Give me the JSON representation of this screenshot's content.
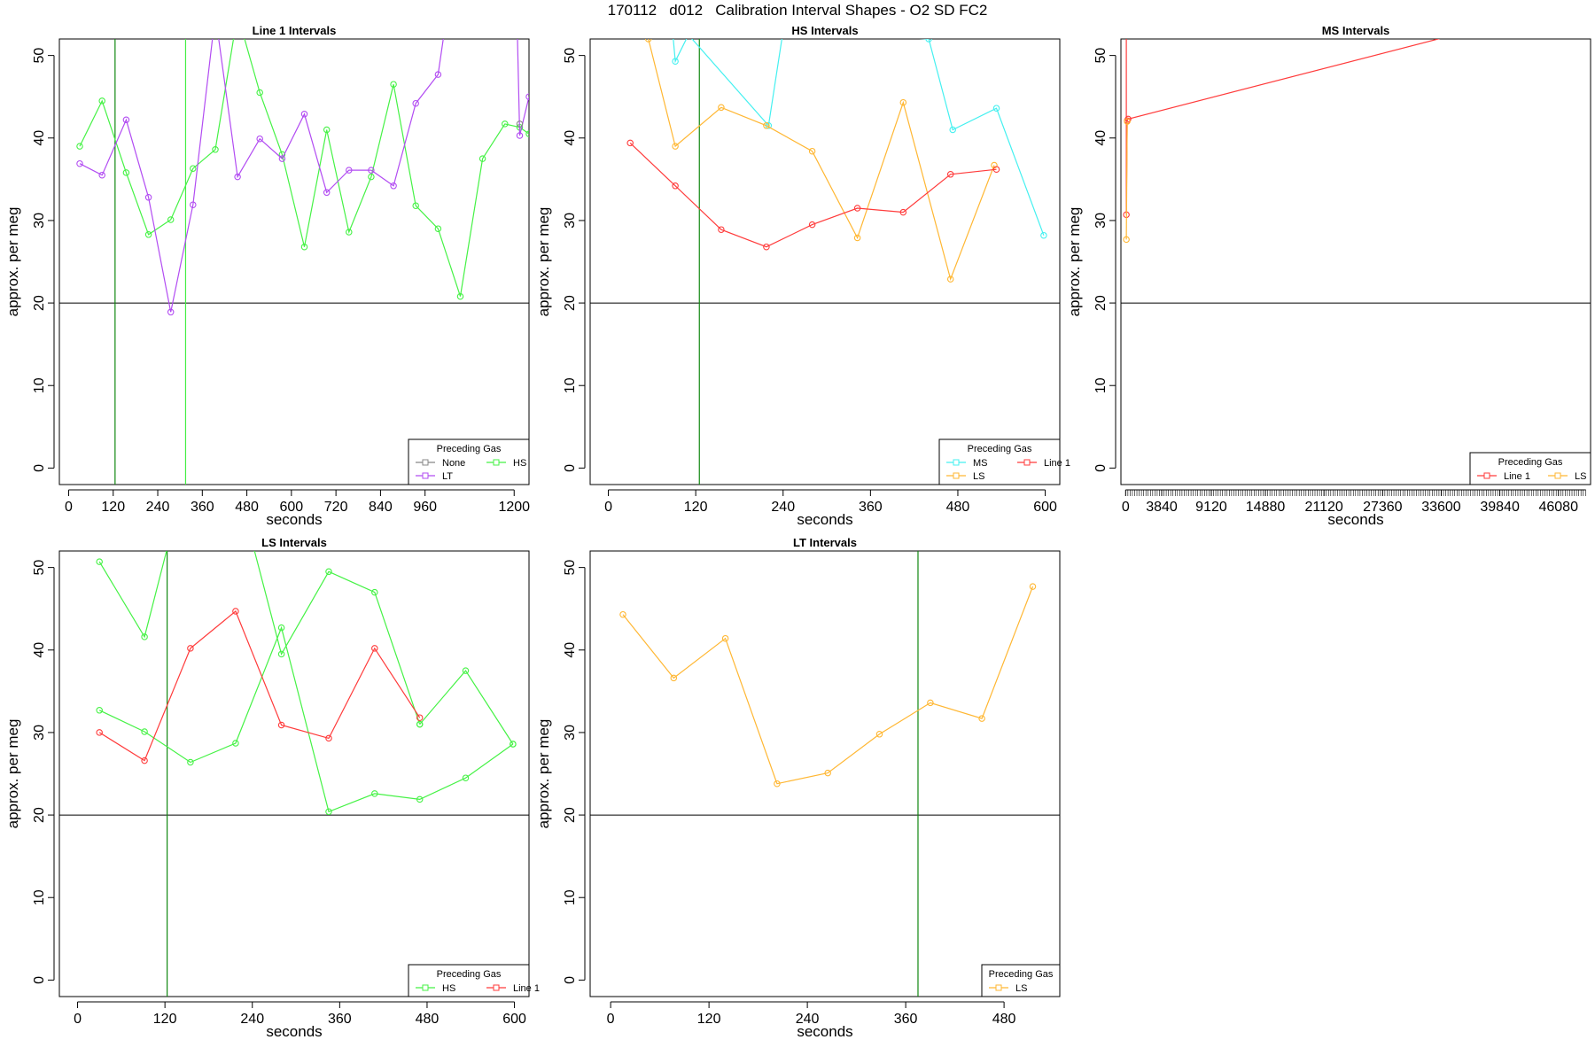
{
  "title": "170112   d012   Calibration Interval Shapes - O2 SD FC2",
  "colors": {
    "Line 1": "#ff3b3b",
    "LT": "#b24cf2",
    "HS": "#45f245",
    "MS": "#44f0f0",
    "LS": "#ffb733",
    "None": "#888888",
    "axis": "#000000",
    "refline": "#000000",
    "marker_dark_green": "#118811",
    "marker_light_green": "#44ee44"
  },
  "chart_data": [
    {
      "type": "line",
      "title": "Line 1 Intervals",
      "xlabel": "seconds",
      "ylabel": "approx. per meg",
      "xlim": [
        -25,
        1240
      ],
      "ylim": [
        -2,
        52
      ],
      "xticks": [
        0,
        120,
        240,
        360,
        480,
        600,
        720,
        840,
        960,
        1200
      ],
      "yticks": [
        0,
        10,
        20,
        30,
        40,
        50
      ],
      "hline": 20,
      "vlines": [
        {
          "x": 125,
          "color": "marker_dark_green"
        },
        {
          "x": 315,
          "color": "marker_light_green"
        }
      ],
      "legend": {
        "title": "Preceding Gas",
        "position": "bottom-right",
        "entries": [
          "None",
          "HS",
          "LT"
        ],
        "cols": 2
      },
      "series": [
        {
          "name": "HS",
          "x": [
            30,
            90,
            155,
            215,
            275,
            335,
            395,
            455,
            515,
            575,
            635,
            695,
            755,
            815,
            875,
            935,
            995,
            1055,
            1115,
            1175,
            1215,
            1240
          ],
          "y": [
            39.0,
            44.5,
            35.8,
            28.3,
            30.1,
            36.3,
            38.6,
            55.0,
            45.5,
            38.0,
            26.8,
            41.0,
            28.6,
            35.3,
            46.5,
            31.8,
            29.0,
            20.8,
            37.5,
            41.7,
            41.3,
            40.5
          ]
        },
        {
          "name": "LT",
          "x": [
            30,
            90,
            155,
            215,
            275,
            335,
            395,
            455,
            515,
            575,
            635,
            695,
            755,
            815,
            875,
            935,
            995,
            1035,
            1205,
            1215,
            1240
          ],
          "y": [
            36.9,
            35.5,
            42.2,
            32.8,
            18.9,
            31.9,
            55.0,
            35.3,
            39.9,
            37.5,
            42.9,
            33.4,
            36.1,
            36.1,
            34.2,
            44.2,
            47.7,
            60.0,
            60.0,
            40.3,
            45.0
          ]
        },
        {
          "name": "None",
          "x": [
            1215
          ],
          "y": [
            41.7
          ]
        }
      ]
    },
    {
      "type": "line",
      "title": "HS Intervals",
      "xlabel": "seconds",
      "ylabel": "approx. per meg",
      "xlim": [
        -25,
        620
      ],
      "ylim": [
        -2,
        52
      ],
      "xticks": [
        0,
        120,
        240,
        360,
        480,
        600
      ],
      "yticks": [
        0,
        10,
        20,
        30,
        40,
        50
      ],
      "hline": 20,
      "vlines": [
        {
          "x": 125,
          "color": "marker_dark_green"
        }
      ],
      "legend": {
        "title": "Preceding Gas",
        "position": "bottom-right",
        "entries": [
          "MS",
          "Line 1",
          "LS"
        ],
        "cols": 2
      },
      "series": [
        {
          "name": "MS",
          "x": [
            85,
            92,
            110,
            220,
            240,
            440,
            473,
            533,
            598
          ],
          "y": [
            56.0,
            49.3,
            52.5,
            41.5,
            53.0,
            52.0,
            41.0,
            43.6,
            28.2
          ]
        },
        {
          "name": "LS",
          "x": [
            55,
            92,
            155,
            217,
            280,
            342,
            405,
            470,
            530
          ],
          "y": [
            52.0,
            39.0,
            43.7,
            41.5,
            38.4,
            27.9,
            44.3,
            22.9,
            36.7
          ]
        },
        {
          "name": "Line 1",
          "x": [
            30,
            92,
            155,
            217,
            280,
            342,
            405,
            470,
            533
          ],
          "y": [
            39.4,
            34.2,
            28.9,
            26.8,
            29.5,
            31.5,
            31.0,
            35.6,
            36.2
          ]
        }
      ]
    },
    {
      "type": "line",
      "title": "MS Intervals",
      "xlabel": "seconds",
      "ylabel": "approx. per meg",
      "xlim": [
        -500,
        49500
      ],
      "ylim": [
        -2,
        52
      ],
      "xticks": [
        0,
        3840,
        9120,
        14880,
        21120,
        27360,
        33600,
        39840,
        46080
      ],
      "dense_tick_step": 240,
      "dense_tick_max": 49000,
      "yticks": [
        0,
        10,
        20,
        30,
        40,
        50
      ],
      "hline": 20,
      "vlines": [],
      "legend": {
        "title": "Preceding Gas",
        "position": "bottom-right",
        "entries": [
          "Line 1",
          "LS"
        ],
        "cols": 2
      },
      "series": [
        {
          "name": "Line 1",
          "x": [
            80,
            80,
            170,
            260,
            35000
          ],
          "y": [
            70,
            30.7,
            42.1,
            42.3,
            52.5
          ]
        },
        {
          "name": "LS",
          "x": [
            80,
            170
          ],
          "y": [
            27.7,
            42.0
          ]
        }
      ]
    },
    {
      "type": "line",
      "title": "LS Intervals",
      "xlabel": "seconds",
      "ylabel": "approx. per meg",
      "xlim": [
        -25,
        620
      ],
      "ylim": [
        -2,
        52
      ],
      "xticks": [
        0,
        120,
        240,
        360,
        480,
        600
      ],
      "yticks": [
        0,
        10,
        20,
        30,
        40,
        50
      ],
      "hline": 20,
      "vlines": [
        {
          "x": 123,
          "color": "marker_dark_green"
        }
      ],
      "legend": {
        "title": "Preceding Gas",
        "position": "bottom-right",
        "entries": [
          "HS",
          "Line 1"
        ],
        "cols": 2
      },
      "series": [
        {
          "name": "HS",
          "x": [
            30,
            92,
            125,
            240,
            280,
            345,
            408,
            470
          ],
          "y": [
            50.7,
            41.6,
            53.0,
            53.0,
            39.5,
            49.5,
            47.0,
            31.0
          ]
        },
        {
          "name": "HS",
          "x": [
            30,
            92,
            155,
            217,
            280,
            345,
            408,
            470,
            533,
            598
          ],
          "y": [
            32.7,
            30.1,
            26.4,
            28.7,
            42.7,
            20.4,
            22.6,
            21.9,
            24.5,
            28.6
          ]
        },
        {
          "name": "HS",
          "x": [
            470,
            533,
            598
          ],
          "y": [
            31.0,
            37.5,
            28.6
          ]
        },
        {
          "name": "Line 1",
          "x": [
            30,
            92,
            155,
            217,
            280,
            345,
            408,
            470
          ],
          "y": [
            30.0,
            26.6,
            40.2,
            44.7,
            30.9,
            29.3,
            40.2,
            31.8
          ]
        }
      ]
    },
    {
      "type": "line",
      "title": "LT Intervals",
      "xlabel": "seconds",
      "ylabel": "approx. per meg",
      "xlim": [
        -25,
        548
      ],
      "ylim": [
        -2,
        52
      ],
      "xticks": [
        0,
        120,
        240,
        360,
        480
      ],
      "yticks": [
        0,
        10,
        20,
        30,
        40,
        50
      ],
      "hline": 20,
      "vlines": [
        {
          "x": 375,
          "color": "marker_dark_green"
        }
      ],
      "legend": {
        "title": "Preceding Gas",
        "position": "bottom-right",
        "entries": [
          "LS"
        ],
        "cols": 1
      },
      "series": [
        {
          "name": "LS",
          "x": [
            15,
            77,
            140,
            203,
            265,
            328,
            390,
            453,
            515
          ],
          "y": [
            44.3,
            36.6,
            41.4,
            23.8,
            25.1,
            29.8,
            33.6,
            31.7,
            47.7
          ]
        }
      ]
    }
  ]
}
